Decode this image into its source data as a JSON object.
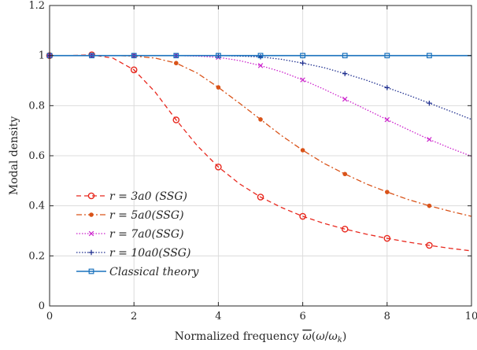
{
  "chart_data": {
    "type": "line",
    "xlabel": "Normalized frequency ω̅(ω/ωk)",
    "ylabel": "Modal density",
    "xlim": [
      0,
      10
    ],
    "ylim": [
      0,
      1.2
    ],
    "xticks": [
      "0",
      "2",
      "4",
      "6",
      "8",
      "10"
    ],
    "yticks": [
      "0",
      "0.2",
      "0.4",
      "0.6",
      "0.8",
      "1",
      "1.2"
    ],
    "grid": true,
    "legend_position": "bottom-left",
    "series": [
      {
        "name": "r = 3a0 (SSG)",
        "color": "#e8281e",
        "style": "dashed",
        "marker": "circle",
        "x": [
          0,
          0.5,
          1,
          1.5,
          2,
          2.5,
          3,
          3.5,
          4,
          4.5,
          5,
          5.5,
          6,
          6.5,
          7,
          7.5,
          8,
          8.5,
          9,
          9.5,
          10
        ],
        "y": [
          1.0,
          1.0,
          1.003,
          0.99,
          0.943,
          0.855,
          0.743,
          0.64,
          0.555,
          0.488,
          0.435,
          0.393,
          0.358,
          0.33,
          0.307,
          0.287,
          0.27,
          0.255,
          0.242,
          0.23,
          0.22
        ],
        "marker_x": [
          0,
          1,
          2,
          3,
          4,
          5,
          6,
          7,
          8,
          9
        ]
      },
      {
        "name": "r = 5a0(SSG)",
        "color": "#d95319",
        "style": "dashdot",
        "marker": "dot",
        "x": [
          0,
          0.5,
          1,
          1.5,
          2,
          2.5,
          3,
          3.5,
          4,
          4.5,
          5,
          5.5,
          6,
          6.5,
          7,
          7.5,
          8,
          8.5,
          9,
          9.5,
          10
        ],
        "y": [
          1.0,
          1.0,
          1.0,
          1.0,
          0.998,
          0.99,
          0.97,
          0.93,
          0.873,
          0.81,
          0.745,
          0.68,
          0.622,
          0.57,
          0.527,
          0.488,
          0.455,
          0.425,
          0.4,
          0.378,
          0.358
        ],
        "marker_x": [
          0,
          1,
          2,
          3,
          4,
          5,
          6,
          7,
          8,
          9
        ]
      },
      {
        "name": "r = 7a0(SSG)",
        "color": "#cc22cc",
        "style": "dotted",
        "marker": "x",
        "x": [
          0,
          0.5,
          1,
          1.5,
          2,
          2.5,
          3,
          3.5,
          4,
          4.5,
          5,
          5.5,
          6,
          6.5,
          7,
          7.5,
          8,
          8.5,
          9,
          9.5,
          10
        ],
        "y": [
          1.0,
          1.0,
          1.0,
          1.0,
          1.0,
          1.0,
          1.0,
          0.998,
          0.993,
          0.98,
          0.96,
          0.935,
          0.903,
          0.866,
          0.826,
          0.785,
          0.744,
          0.704,
          0.665,
          0.63,
          0.598
        ],
        "marker_x": [
          0,
          1,
          2,
          3,
          4,
          5,
          6,
          7,
          8,
          9
        ]
      },
      {
        "name": "r = 10a0(SSG)",
        "color": "#1f2f8f",
        "style": "dotted",
        "marker": "plus",
        "x": [
          0,
          0.5,
          1,
          1.5,
          2,
          2.5,
          3,
          3.5,
          4,
          4.5,
          5,
          5.5,
          6,
          6.5,
          7,
          7.5,
          8,
          8.5,
          9,
          9.5,
          10
        ],
        "y": [
          1.0,
          1.0,
          1.0,
          1.0,
          1.0,
          1.0,
          1.0,
          1.0,
          1.0,
          0.998,
          0.995,
          0.985,
          0.97,
          0.952,
          0.928,
          0.902,
          0.872,
          0.842,
          0.81,
          0.778,
          0.745
        ],
        "marker_x": [
          0,
          1,
          2,
          3,
          4,
          5,
          6,
          7,
          8,
          9
        ]
      },
      {
        "name": "Classical theory",
        "color": "#1a72bd",
        "style": "solid",
        "marker": "square",
        "x": [
          0,
          10
        ],
        "y": [
          1.0,
          1.0
        ],
        "marker_x": [
          0,
          1,
          2,
          3,
          4,
          5,
          6,
          7,
          8,
          9
        ]
      }
    ]
  }
}
